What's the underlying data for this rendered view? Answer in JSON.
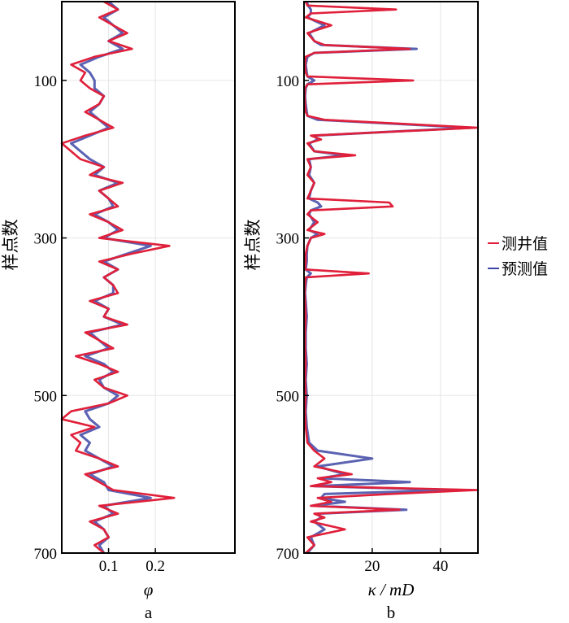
{
  "chart_data": [
    {
      "type": "line",
      "panel": "a",
      "orientation": "vertical",
      "xlabel": "φ",
      "ylabel": "样点数",
      "xlim": [
        0,
        0.37
      ],
      "ylim": [
        700,
        0
      ],
      "xticks": [
        0.1,
        0.2
      ],
      "yticks": [
        100,
        300,
        500,
        700
      ],
      "grid": true,
      "series": [
        {
          "name": "测井值",
          "color": "#e0203a",
          "y": [
            0,
            10,
            20,
            30,
            40,
            50,
            60,
            70,
            80,
            90,
            100,
            110,
            120,
            130,
            140,
            150,
            160,
            170,
            180,
            190,
            200,
            210,
            220,
            230,
            240,
            250,
            260,
            270,
            280,
            290,
            300,
            310,
            320,
            330,
            340,
            350,
            360,
            370,
            380,
            390,
            400,
            410,
            420,
            430,
            440,
            450,
            460,
            470,
            480,
            490,
            500,
            510,
            520,
            530,
            540,
            550,
            560,
            570,
            580,
            590,
            600,
            610,
            620,
            630,
            640,
            650,
            660,
            670,
            680,
            690,
            700
          ],
          "x": [
            0.09,
            0.12,
            0.08,
            0.11,
            0.14,
            0.1,
            0.15,
            0.07,
            0.02,
            0.05,
            0.04,
            0.06,
            0.09,
            0.08,
            0.05,
            0.08,
            0.11,
            0.05,
            0.0,
            0.02,
            0.04,
            0.09,
            0.06,
            0.13,
            0.08,
            0.1,
            0.12,
            0.06,
            0.1,
            0.13,
            0.08,
            0.23,
            0.15,
            0.08,
            0.12,
            0.09,
            0.11,
            0.12,
            0.06,
            0.1,
            0.09,
            0.14,
            0.05,
            0.08,
            0.11,
            0.03,
            0.08,
            0.12,
            0.07,
            0.09,
            0.14,
            0.1,
            0.02,
            0.0,
            0.07,
            0.02,
            0.04,
            0.03,
            0.08,
            0.12,
            0.05,
            0.08,
            0.11,
            0.24,
            0.08,
            0.12,
            0.06,
            0.09,
            0.1,
            0.07,
            0.09
          ]
        },
        {
          "name": "预测值",
          "color": "#3e46a4",
          "y": [
            0,
            10,
            20,
            30,
            40,
            50,
            60,
            70,
            80,
            90,
            100,
            110,
            120,
            130,
            140,
            150,
            160,
            170,
            180,
            190,
            200,
            210,
            220,
            230,
            240,
            250,
            260,
            270,
            280,
            290,
            300,
            310,
            320,
            330,
            340,
            350,
            360,
            370,
            380,
            390,
            400,
            410,
            420,
            430,
            440,
            450,
            460,
            470,
            480,
            490,
            500,
            510,
            520,
            530,
            540,
            550,
            560,
            570,
            580,
            590,
            600,
            610,
            620,
            630,
            640,
            650,
            660,
            670,
            680,
            690,
            700
          ],
          "x": [
            0.1,
            0.12,
            0.09,
            0.11,
            0.13,
            0.1,
            0.13,
            0.08,
            0.04,
            0.06,
            0.07,
            0.07,
            0.09,
            0.08,
            0.06,
            0.08,
            0.1,
            0.06,
            0.02,
            0.04,
            0.06,
            0.09,
            0.07,
            0.12,
            0.08,
            0.1,
            0.11,
            0.07,
            0.1,
            0.12,
            0.09,
            0.19,
            0.14,
            0.09,
            0.12,
            0.09,
            0.11,
            0.11,
            0.07,
            0.1,
            0.09,
            0.13,
            0.06,
            0.08,
            0.1,
            0.05,
            0.09,
            0.11,
            0.08,
            0.09,
            0.12,
            0.1,
            0.05,
            0.06,
            0.08,
            0.04,
            0.06,
            0.05,
            0.08,
            0.11,
            0.06,
            0.09,
            0.1,
            0.19,
            0.09,
            0.11,
            0.07,
            0.09,
            0.1,
            0.08,
            0.09
          ]
        }
      ],
      "caption": "a"
    },
    {
      "type": "line",
      "panel": "b",
      "orientation": "vertical",
      "xlabel": "κ / mD",
      "ylabel": "样点数",
      "xlim": [
        0,
        51
      ],
      "ylim": [
        700,
        0
      ],
      "xticks": [
        20,
        40
      ],
      "yticks": [
        100,
        300,
        500,
        700
      ],
      "grid": true,
      "series": [
        {
          "name": "测井值",
          "color": "#e0203a",
          "y": [
            0,
            5,
            10,
            15,
            20,
            30,
            40,
            50,
            55,
            60,
            65,
            70,
            80,
            90,
            95,
            100,
            105,
            110,
            120,
            130,
            140,
            145,
            150,
            160,
            170,
            175,
            180,
            190,
            195,
            200,
            210,
            220,
            230,
            240,
            250,
            255,
            260,
            265,
            270,
            280,
            290,
            295,
            300,
            310,
            320,
            330,
            340,
            345,
            350,
            360,
            370,
            380,
            400,
            420,
            440,
            460,
            480,
            500,
            520,
            540,
            560,
            570,
            580,
            590,
            600,
            605,
            610,
            615,
            620,
            625,
            630,
            635,
            640,
            645,
            650,
            655,
            660,
            670,
            680,
            690,
            700
          ],
          "x": [
            0.5,
            1,
            27,
            2,
            0.5,
            8,
            1,
            3,
            6,
            31,
            3,
            0.5,
            0.3,
            0.5,
            1,
            32,
            1,
            0.3,
            0.2,
            0.3,
            0.5,
            1,
            6,
            51,
            2,
            5,
            1,
            3,
            15,
            1,
            2,
            1,
            3,
            2,
            1,
            25,
            26,
            2,
            1,
            4,
            1,
            6,
            2,
            1,
            0.5,
            0.5,
            0.3,
            19,
            0.5,
            0.3,
            0.2,
            0.3,
            0.5,
            0.3,
            0.3,
            0.5,
            0.3,
            0.5,
            0.3,
            0.5,
            1,
            3,
            6,
            3,
            14,
            4,
            8,
            2,
            51,
            25,
            4,
            8,
            2,
            28,
            3,
            6,
            2,
            12,
            1,
            3,
            0.5
          ]
        },
        {
          "name": "预测值",
          "color": "#3e46a4",
          "y": [
            0,
            5,
            10,
            15,
            20,
            30,
            40,
            50,
            55,
            60,
            65,
            70,
            80,
            90,
            95,
            100,
            105,
            110,
            120,
            130,
            140,
            145,
            150,
            160,
            170,
            175,
            180,
            190,
            195,
            200,
            210,
            220,
            230,
            240,
            250,
            255,
            260,
            265,
            270,
            280,
            290,
            295,
            300,
            310,
            320,
            330,
            340,
            345,
            350,
            360,
            370,
            380,
            400,
            420,
            440,
            460,
            480,
            500,
            520,
            540,
            560,
            570,
            580,
            590,
            600,
            605,
            610,
            615,
            620,
            625,
            630,
            635,
            640,
            645,
            650,
            655,
            660,
            670,
            680,
            690,
            700
          ],
          "x": [
            0.8,
            1.2,
            2,
            2,
            1,
            6,
            1.5,
            3,
            5,
            33,
            3,
            1,
            0.5,
            0.8,
            1,
            3,
            1,
            0.5,
            0.3,
            0.5,
            0.8,
            1,
            4,
            49,
            3,
            4,
            1.5,
            3,
            12,
            1.5,
            2,
            1.5,
            3,
            2,
            1.5,
            4,
            5,
            2,
            1.5,
            3,
            1.5,
            4,
            2,
            1,
            0.8,
            0.8,
            0.5,
            2,
            0.8,
            0.5,
            0.3,
            0.5,
            0.8,
            0.5,
            0.5,
            0.8,
            0.5,
            0.8,
            0.5,
            0.8,
            1.5,
            4,
            20,
            4,
            12,
            5,
            31,
            3,
            44,
            6,
            5,
            12,
            3,
            30,
            4,
            5,
            3,
            6,
            2,
            3,
            1
          ]
        }
      ],
      "caption": "b"
    }
  ],
  "legend": {
    "placement": "right",
    "entries": [
      {
        "label": "测井值",
        "color": "#e0203a"
      },
      {
        "label": "预测值",
        "color": "#3e46a4"
      }
    ]
  }
}
